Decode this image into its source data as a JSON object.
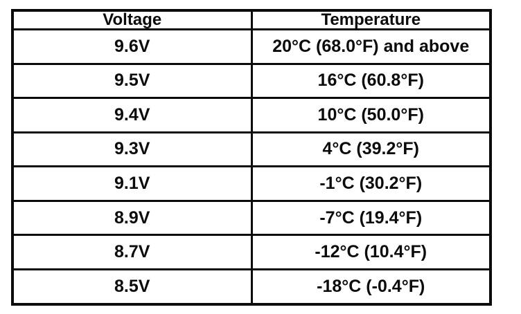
{
  "page": {
    "background_color": "#ffffff",
    "description": "Scanned manual page: battery voltage vs temperature lookup table"
  },
  "table": {
    "headers": [
      "Voltage",
      "Temperature"
    ],
    "rows": [
      [
        "9.6V",
        "20°C (68.0°F) and above"
      ],
      [
        "9.5V",
        "16°C (60.8°F)"
      ],
      [
        "9.4V",
        "10°C (50.0°F)"
      ],
      [
        "9.3V",
        "4°C (39.2°F)"
      ],
      [
        "9.1V",
        "-1°C (30.2°F)"
      ],
      [
        "8.9V",
        "-7°C (19.4°F)"
      ],
      [
        "8.7V",
        "-12°C (10.4°F)"
      ],
      [
        "8.5V",
        "-18°C (-0.4°F)"
      ]
    ],
    "colors": {
      "border": "#0b0b0b",
      "text": "#0b0b0b",
      "cell_background": "#ffffff"
    }
  }
}
